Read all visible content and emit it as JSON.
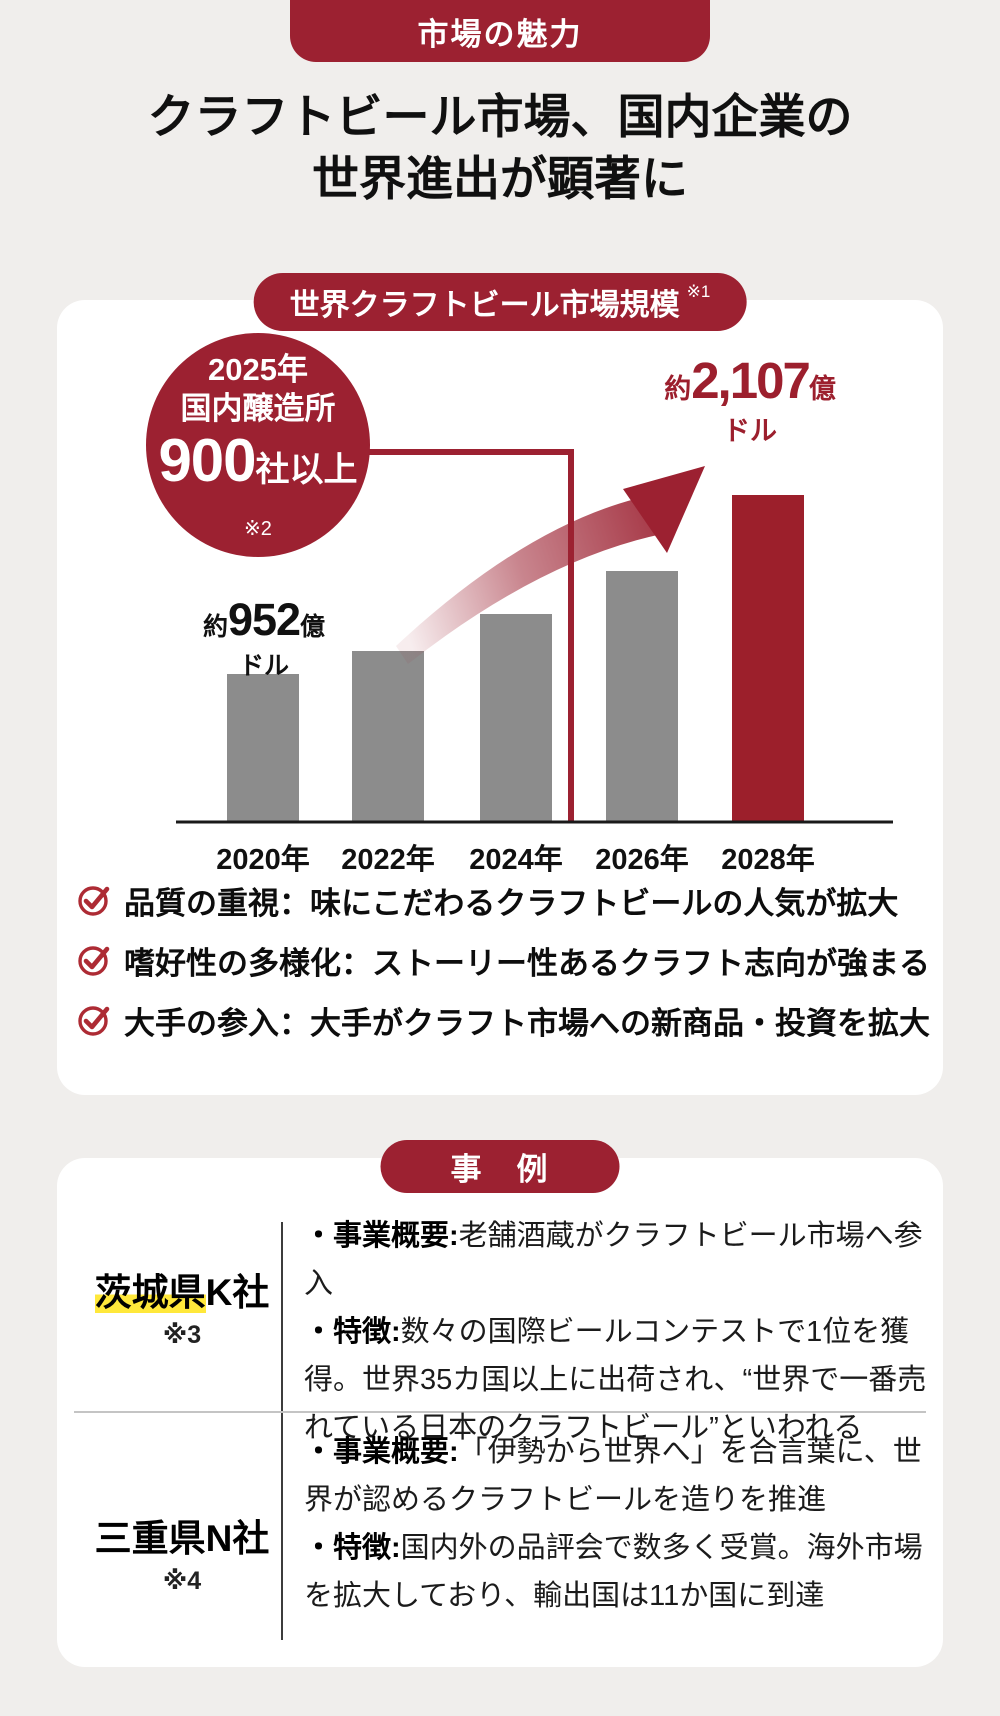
{
  "palette": {
    "accent_red": "#9c2131",
    "bar_red": "#9c1f2b",
    "bar_gray": "#8c8c8c",
    "check_red": "#ad2b34",
    "highlight_yellow": "#ffe83b",
    "page_bg": "#f0eeec"
  },
  "header": {
    "badge": "市場の魅力",
    "title_line1": "クラフトビール市場、国内企業の",
    "title_line2": "世界進出が顕著に"
  },
  "market_card": {
    "badge": "世界クラフトビール市場規模",
    "badge_note": "※1",
    "annotation_circle": {
      "line1": "2025年",
      "line2": "国内醸造所",
      "big": "900",
      "suffix": "社以上",
      "note": "※2"
    },
    "label_2020": {
      "prefix": "約",
      "value": "952",
      "unit": "億",
      "unit2": "ドル"
    },
    "label_2028": {
      "prefix": "約",
      "value": "2,107",
      "unit": "億",
      "unit2": "ドル"
    },
    "bullets": [
      {
        "label": "品質の重視：",
        "text": "味にこだわるクラフトビールの人気が拡大"
      },
      {
        "label": "嗜好性の多様化：",
        "text": "ストーリー性あるクラフト志向が強まる"
      },
      {
        "label": "大手の参入：",
        "text": "大手がクラフト市場への新商品・投資を拡大"
      }
    ]
  },
  "chart_data": {
    "type": "bar",
    "title": "世界クラフトビール市場規模 ※1",
    "categories": [
      "2020年",
      "2022年",
      "2024年",
      "2026年",
      "2028年"
    ],
    "values": [
      952,
      1100,
      1340,
      1620,
      2107
    ],
    "estimated": [
      false,
      true,
      true,
      true,
      false
    ],
    "unit": "億ドル",
    "ylim": [
      0,
      2200
    ],
    "grid": false,
    "bar_colors": [
      "#8c8c8c",
      "#8c8c8c",
      "#8c8c8c",
      "#8c8c8c",
      "#9c1f2b"
    ],
    "point_labels": {
      "2020年": "約952億ドル",
      "2028年": "約2,107億ドル"
    },
    "annotation": "2025年 国内醸造所 900社以上 ※2",
    "annotation_points_to": "2025"
  },
  "cases_card": {
    "badge": "事　例",
    "rows": [
      {
        "name_highlight": "茨城県",
        "name_rest": "K社",
        "note": "※3",
        "items": [
          {
            "label": "・事業概要:",
            "text": "老舗酒蔵がクラフトビール市場へ参入"
          },
          {
            "label": "・特徴:",
            "text": "数々の国際ビールコンテストで1位を獲得。世界35カ国以上に出荷され、“世界で一番売れている日本のクラフトビール”といわれる"
          }
        ]
      },
      {
        "name_highlight": "",
        "name_rest": "三重県N社",
        "note": "※4",
        "items": [
          {
            "label": "・事業概要:",
            "text": "「伊勢から世界へ」を合言葉に、世界が認めるクラフトビールを造りを推進"
          },
          {
            "label": "・特徴:",
            "text": "国内外の品評会で数多く受賞。海外市場を拡大しており、輸出国は11か国に到達"
          }
        ]
      }
    ]
  }
}
